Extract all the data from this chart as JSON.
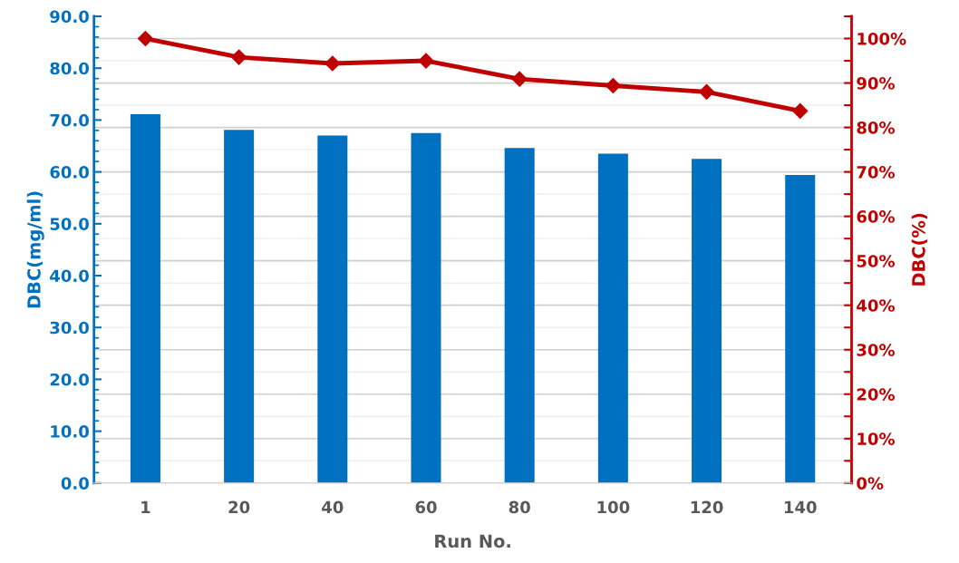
{
  "chart_data": {
    "type": "bar",
    "xlabel": "Run No.",
    "ylabel": "DBC(mg/ml)",
    "y2label": "DBC(%)",
    "categories": [
      "1",
      "20",
      "40",
      "60",
      "80",
      "100",
      "120",
      "140"
    ],
    "series": [
      {
        "color": "#0070c0",
        "values": [
          71.1,
          68.1,
          67.0,
          67.5,
          64.6,
          63.5,
          62.5,
          59.4
        ]
      },
      {
        "type": "line",
        "axis": "y2",
        "color": "#c00000",
        "marker": "diamond",
        "values": [
          100,
          95.8,
          94.4,
          95.0,
          90.9,
          89.4,
          88.0,
          83.7
        ]
      }
    ],
    "ylim": [
      0,
      90
    ],
    "yticks": [
      {
        "value": 0,
        "label": "0.0"
      },
      {
        "value": 10,
        "label": "10.0"
      },
      {
        "value": 20,
        "label": "20.0"
      },
      {
        "value": 30,
        "label": "30.0"
      },
      {
        "value": 40,
        "label": "40.0"
      },
      {
        "value": 50,
        "label": "50.0"
      },
      {
        "value": 60,
        "label": "60.0"
      },
      {
        "value": 70,
        "label": "70.0"
      },
      {
        "value": 80,
        "label": "80.0"
      },
      {
        "value": 90,
        "label": "90.0"
      }
    ],
    "y2lim": [
      0,
      105
    ],
    "y2ticks": [
      {
        "value": 0,
        "label": "0%"
      },
      {
        "value": 10,
        "label": "10%"
      },
      {
        "value": 20,
        "label": "20%"
      },
      {
        "value": 30,
        "label": "30%"
      },
      {
        "value": 40,
        "label": "40%"
      },
      {
        "value": 50,
        "label": "50%"
      },
      {
        "value": 60,
        "label": "60%"
      },
      {
        "value": 70,
        "label": "70%"
      },
      {
        "value": 80,
        "label": "80%"
      },
      {
        "value": 90,
        "label": "90%"
      },
      {
        "value": 100,
        "label": "100%"
      }
    ],
    "grid": true,
    "legend": false
  }
}
